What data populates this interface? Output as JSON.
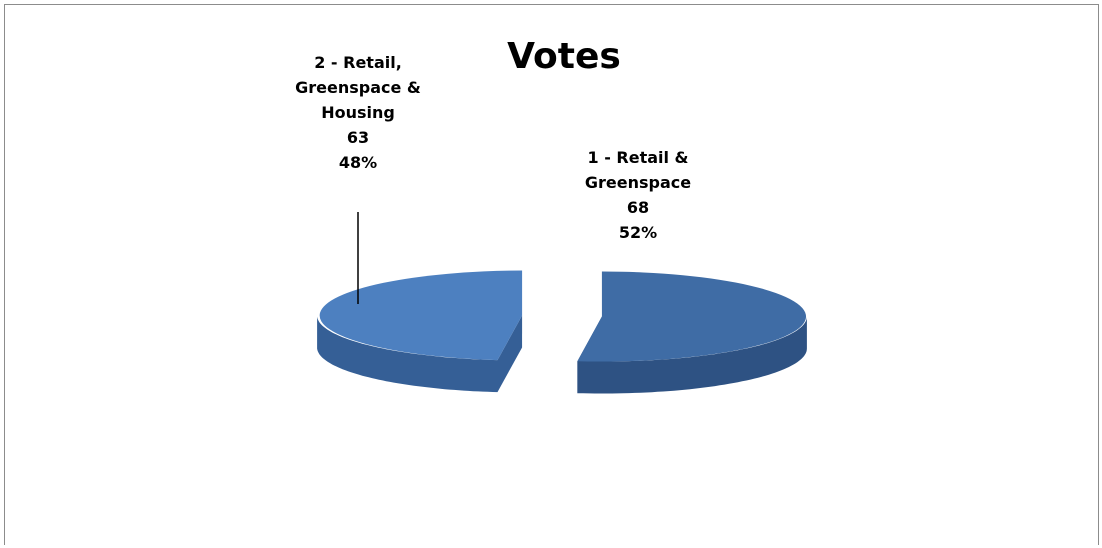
{
  "chart_data": {
    "type": "pie",
    "title": "Votes",
    "style": "3d-exploded",
    "slices": [
      {
        "label": "1 - Retail & Greenspace",
        "label_lines": [
          "1 - Retail &",
          "Greenspace"
        ],
        "value": 68,
        "percent": "52%",
        "color": "#3f6ca5",
        "side": "#2e5283"
      },
      {
        "label": "2 - Retail, Greenspace & Housing",
        "label_lines": [
          "2 - Retail,",
          "Greenspace &",
          "Housing"
        ],
        "value": 63,
        "percent": "48%",
        "color": "#4d80c0",
        "side": "#355f96"
      }
    ]
  }
}
